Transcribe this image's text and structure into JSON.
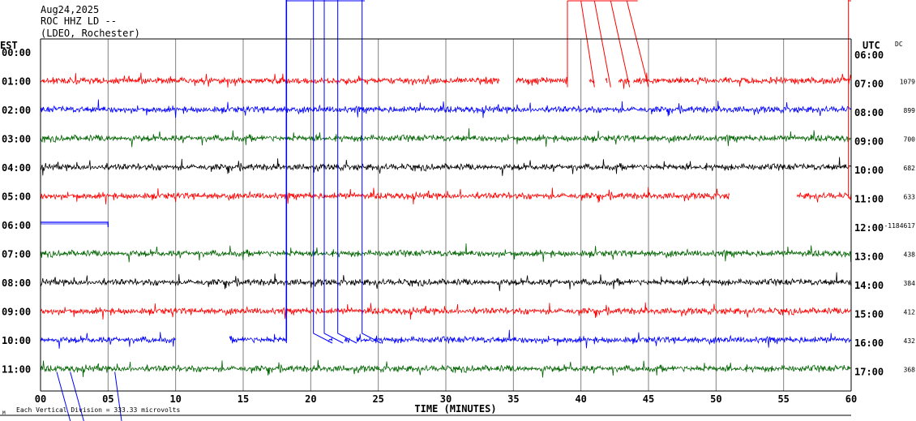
{
  "header": {
    "date": "Aug24,2025",
    "station": "ROC HHZ LD --",
    "network": "(LDEO, Rochester)"
  },
  "chart_data": {
    "type": "line",
    "title": "",
    "xlabel": "TIME (MINUTES)",
    "left_axis_label": "EST",
    "right_axis_label": "UTC",
    "dc_label": "DC",
    "xlim": [
      0,
      60
    ],
    "x_ticks": [
      "00",
      "05",
      "10",
      "15",
      "20",
      "25",
      "30",
      "35",
      "40",
      "45",
      "50",
      "55",
      "60"
    ],
    "grid": true,
    "footer_note": "Each Vertical Division = 333.33 microvolts",
    "corner_mark": "M",
    "series_colors": [
      "#ff0000",
      "#0000ff",
      "#006400",
      "#000000"
    ],
    "rows": [
      {
        "est": "00:00",
        "utc": "06:00",
        "dc": "",
        "color": "#ff0000",
        "segments": []
      },
      {
        "est": "01:00",
        "utc": "07:00",
        "dc": "1079",
        "color": "#ff0000",
        "segments": [
          [
            0,
            34
          ],
          [
            35.2,
            39
          ],
          [
            40.6,
            41
          ],
          [
            41.8,
            42
          ],
          [
            42.8,
            43.6
          ],
          [
            43.9,
            60
          ]
        ]
      },
      {
        "est": "02:00",
        "utc": "08:00",
        "dc": "899",
        "color": "#0000ff",
        "segments": [
          [
            0,
            60
          ]
        ]
      },
      {
        "est": "03:00",
        "utc": "09:00",
        "dc": "700",
        "color": "#006400",
        "segments": [
          [
            0,
            60
          ]
        ]
      },
      {
        "est": "04:00",
        "utc": "10:00",
        "dc": "682",
        "color": "#000000",
        "segments": [
          [
            0,
            60
          ]
        ]
      },
      {
        "est": "05:00",
        "utc": "11:00",
        "dc": "633",
        "color": "#ff0000",
        "segments": [
          [
            0,
            51
          ],
          [
            56,
            60
          ]
        ]
      },
      {
        "est": "06:00",
        "utc": "12:00",
        "dc": "-1184617",
        "color": "#0000ff",
        "segments": []
      },
      {
        "est": "07:00",
        "utc": "13:00",
        "dc": "438",
        "color": "#006400",
        "segments": [
          [
            0,
            60
          ]
        ]
      },
      {
        "est": "08:00",
        "utc": "14:00",
        "dc": "384",
        "color": "#000000",
        "segments": [
          [
            0,
            60
          ]
        ]
      },
      {
        "est": "09:00",
        "utc": "15:00",
        "dc": "412",
        "color": "#ff0000",
        "segments": [
          [
            0,
            60
          ]
        ]
      },
      {
        "est": "10:00",
        "utc": "16:00",
        "dc": "432",
        "color": "#0000ff",
        "segments": [
          [
            0,
            10
          ],
          [
            14,
            18.2
          ],
          [
            21.3,
            21.6
          ],
          [
            22.5,
            22.9
          ],
          [
            23.4,
            60
          ]
        ]
      },
      {
        "est": "11:00",
        "utc": "17:00",
        "dc": "368",
        "color": "#006400",
        "segments": [
          [
            0,
            60
          ]
        ]
      }
    ]
  }
}
